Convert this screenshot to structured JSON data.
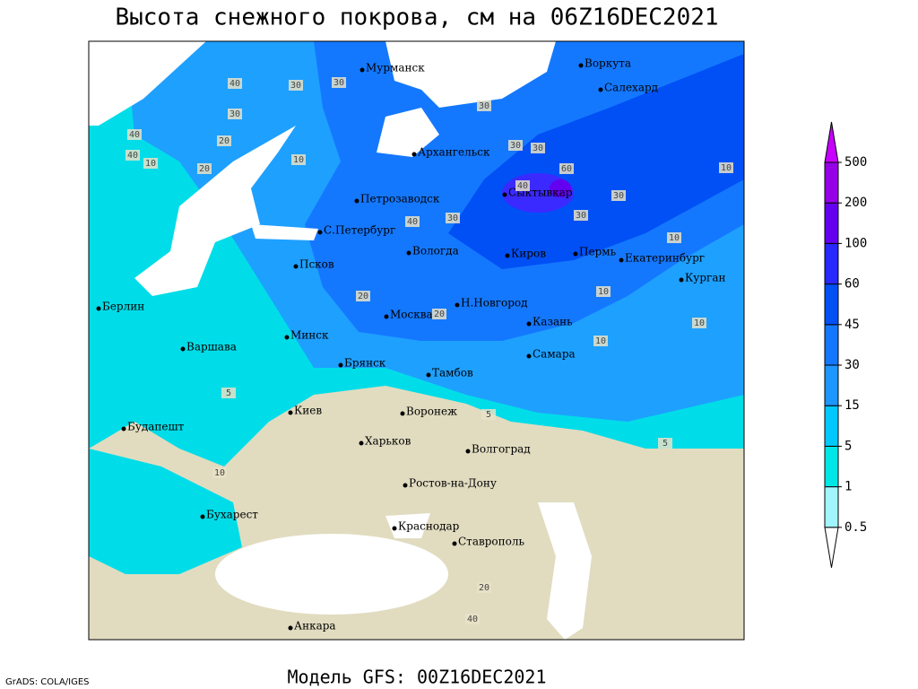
{
  "title": "Высота снежного покрова, см на 06Z16DEC2021",
  "subtitle": "Модель GFS: 00Z16DEC2021",
  "credit": "GrADS: COLA/IGES",
  "cities": [
    "Мурманск",
    "Воркута",
    "Салехард",
    "Архангельск",
    "Петрозаводск",
    "Сыктывкар",
    "С.Петербург",
    "Псков",
    "Вологда",
    "Киров",
    "Пермь",
    "Екатеринбург",
    "Курган",
    "Берлин",
    "Н.Новгород",
    "Москва",
    "Казань",
    "Минск",
    "Варшава",
    "Брянск",
    "Тамбов",
    "Самара",
    "Киев",
    "Воронеж",
    "Харьков",
    "Волгоград",
    "Будапешт",
    "Ростов-на-Дону",
    "Бухарест",
    "Краснодар",
    "Ставрополь",
    "Анкара"
  ],
  "contour_labels": [
    40,
    40,
    30,
    30,
    20,
    40,
    10,
    20,
    10,
    30,
    30,
    30,
    30,
    60,
    40,
    30,
    30,
    40,
    30,
    10,
    10,
    10,
    10,
    20,
    20,
    10,
    5,
    5,
    10,
    5,
    20,
    40
  ],
  "legend": {
    "levels": [
      0.5,
      1,
      5,
      15,
      30,
      45,
      60,
      100,
      200,
      500
    ],
    "colors": [
      "#ffffff",
      "#a0f5ff",
      "#00e6e6",
      "#00c8ff",
      "#1e96ff",
      "#1478ff",
      "#0050f5",
      "#2828ff",
      "#6400f0",
      "#9600e6",
      "#c800ff"
    ]
  }
}
